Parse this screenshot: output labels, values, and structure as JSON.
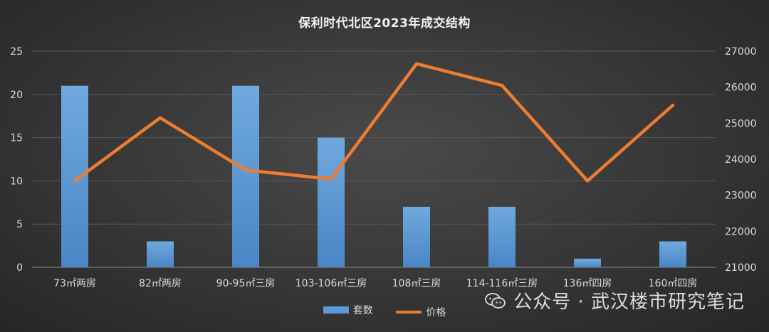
{
  "chart_data": {
    "type": "bar+line",
    "title": "保利时代北区2023年成交结构",
    "categories": [
      "73㎡两房",
      "82㎡两房",
      "90-95㎡三房",
      "103-106㎡三房",
      "108㎡三房",
      "114-116㎡三房",
      "136㎡四房",
      "160㎡四房"
    ],
    "series": [
      {
        "name": "套数",
        "type": "bar",
        "axis": "left",
        "color": "#5b9bd5",
        "values": [
          21,
          3,
          21,
          15,
          7,
          7,
          1,
          3
        ]
      },
      {
        "name": "价格",
        "type": "line",
        "axis": "right",
        "color": "#ed7d31",
        "values": [
          23400,
          25150,
          23700,
          23450,
          26650,
          26050,
          23400,
          25500
        ]
      }
    ],
    "y_left": {
      "ylim": [
        0,
        25
      ],
      "ticks": [
        "0",
        "5",
        "10",
        "15",
        "20",
        "25"
      ]
    },
    "y_right": {
      "ylim": [
        21000,
        27000
      ],
      "ticks": [
        "21000",
        "22000",
        "23000",
        "24000",
        "25000",
        "26000",
        "27000"
      ]
    },
    "grid": true,
    "legend_position": "bottom"
  },
  "watermark": {
    "text": "公众号 · 武汉楼市研究笔记",
    "icon": "wechat-icon"
  }
}
